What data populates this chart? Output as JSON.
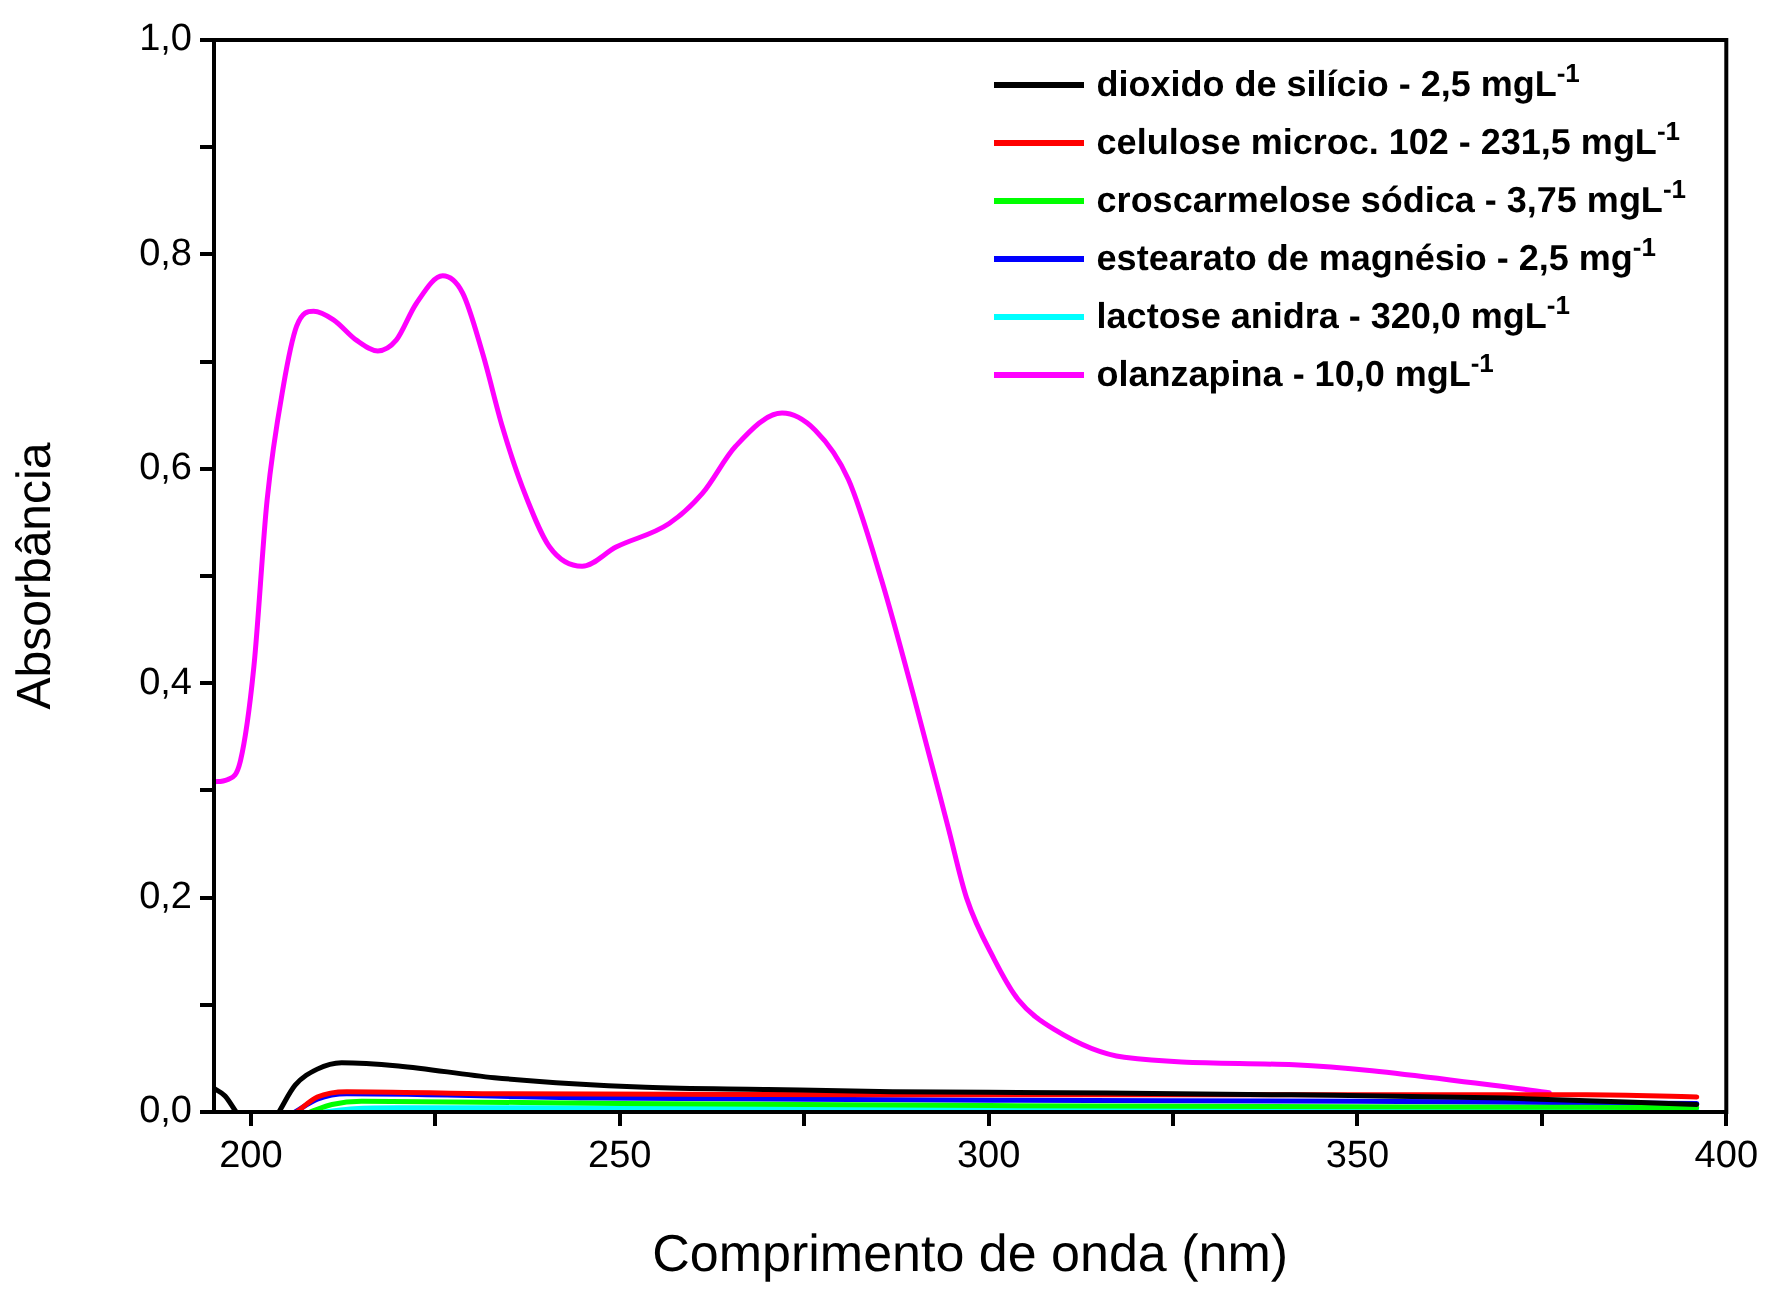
{
  "chart_data": {
    "type": "line",
    "xlabel": "Comprimento de onda (nm)",
    "ylabel": "Absorbância",
    "xlim": [
      195,
      400
    ],
    "xticks": [
      200,
      {
        "value": 225,
        "label": null
      },
      250,
      {
        "value": 275,
        "label": null
      },
      300,
      {
        "value": 325,
        "label": null
      },
      350,
      {
        "value": 375,
        "label": null
      },
      400
    ],
    "ylim": [
      0,
      1
    ],
    "yticks": [
      {
        "value": 0,
        "label": "0,0"
      },
      {
        "value": 0.1,
        "label": null
      },
      {
        "value": 0.2,
        "label": "0,2"
      },
      {
        "value": 0.3,
        "label": null
      },
      {
        "value": 0.4,
        "label": "0,4"
      },
      {
        "value": 0.5,
        "label": null
      },
      {
        "value": 0.6,
        "label": "0,6"
      },
      {
        "value": 0.7,
        "label": null
      },
      {
        "value": 0.8,
        "label": "0,8"
      },
      {
        "value": 0.9,
        "label": null
      },
      {
        "value": 1,
        "label": "1,0"
      }
    ],
    "grid": false,
    "legend": "top right",
    "marker": "none",
    "line_style": "solid",
    "series": [
      {
        "name": "dioxido de silício - 2,5 mgL$^{-1}$",
        "color": "#000000",
        "x": [
          195,
          196.5,
          198,
          199,
          203.8,
          206,
          209,
          212.3,
          220,
          233,
          253.5,
          270,
          287,
          310,
          341,
          370,
          396
        ],
        "values": [
          0.022,
          0.015,
          0,
          null,
          0,
          0.025,
          0.04,
          0.046,
          0.043,
          0.032,
          0.023,
          0.021,
          0.019,
          0.018,
          0.016,
          0.013,
          0.007
        ]
      },
      {
        "name": "celulose microc. 102 - 231,5 mgL$^{-1}$",
        "color": "#ff0000",
        "x": [
          206.2,
          209,
          213,
          233,
          287,
          341,
          381,
          396
        ],
        "values": [
          0,
          0.014,
          0.019,
          0.017,
          0.016,
          0.016,
          0.016,
          0.014
        ]
      },
      {
        "name": "croscarmelose sódica - 3,75 mgL$^{-1}$",
        "color": "#00ff00",
        "x": [
          208,
          211,
          215,
          250,
          300,
          350,
          396
        ],
        "values": [
          0,
          0.007,
          0.01,
          0.008,
          0.006,
          0.005,
          0.004
        ]
      },
      {
        "name": "estearato de magnésio - 2,5 mg$^{-1}$",
        "color": "#0000ff",
        "x": [
          206,
          209,
          213,
          247,
          300.8,
          350,
          396
        ],
        "values": [
          0,
          0.012,
          0.017,
          0.013,
          0.011,
          0.01,
          0.008
        ]
      },
      {
        "name": "lactose anidra - 320,0 mgL$^{-1}$",
        "color": "#00ffff",
        "x": [
          210,
          214,
          220,
          300,
          350,
          396
        ],
        "values": [
          0,
          0.003,
          0.004,
          0.003,
          0.003,
          0.002
        ]
      },
      {
        "name": "olanzapina - 10,0 mgL$^{-1}$",
        "color": "#ff00ff",
        "x": [
          195,
          196.8,
          198.6,
          200.4,
          202.2,
          204.4,
          206.2,
          208.5,
          211.2,
          214.3,
          217.2,
          219.7,
          222.4,
          226,
          228.7,
          231.4,
          234.1,
          236.8,
          240.5,
          244.9,
          249.5,
          256.7,
          261.2,
          265.7,
          272,
          276.5,
          281,
          285.5,
          290,
          294.5,
          297,
          300.8,
          304,
          308.9,
          318.4,
          341.4,
          368.4,
          376
        ],
        "values": [
          0.308,
          0.31,
          0.328,
          0.415,
          0.571,
          0.677,
          0.733,
          0.747,
          0.739,
          0.72,
          0.71,
          0.72,
          0.754,
          0.78,
          0.764,
          0.708,
          0.639,
          0.583,
          0.527,
          0.509,
          0.527,
          0.549,
          0.577,
          0.621,
          0.652,
          0.636,
          0.59,
          0.496,
          0.384,
          0.266,
          0.2,
          0.142,
          0.105,
          0.077,
          0.051,
          0.044,
          0.025,
          0.018
        ]
      }
    ]
  }
}
